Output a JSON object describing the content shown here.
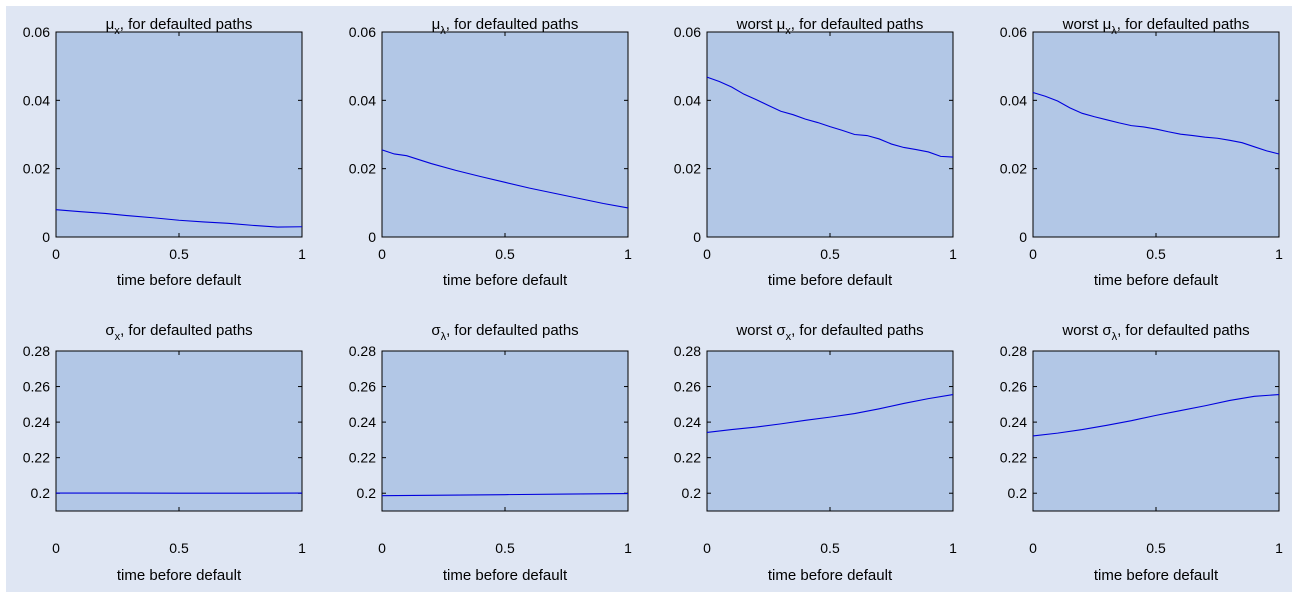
{
  "chart_data": [
    {
      "type": "line",
      "title": {
        "prefix": "",
        "symbol": "μ",
        "subscript": "x",
        "suffix": ", for defaulted paths"
      },
      "xlabel": "time before default",
      "xlim": [
        0,
        1
      ],
      "ylim": [
        0,
        0.06
      ],
      "xticks": [
        "0",
        "0.5",
        "1"
      ],
      "xtick_values": [
        0,
        0.5,
        1
      ],
      "yticks": [
        "0",
        "0.02",
        "0.04",
        "0.06"
      ],
      "ytick_values": [
        0,
        0.02,
        0.04,
        0.06
      ],
      "x": [
        0,
        0.1,
        0.2,
        0.3,
        0.4,
        0.5,
        0.6,
        0.7,
        0.8,
        0.9,
        1
      ],
      "series": [
        {
          "values": [
            0.008,
            0.0074,
            0.0069,
            0.0062,
            0.0056,
            0.0049,
            0.0044,
            0.004,
            0.0034,
            0.0029,
            0.003
          ]
        }
      ]
    },
    {
      "type": "line",
      "title": {
        "prefix": "",
        "symbol": "μ",
        "subscript": "λ",
        "suffix": ", for defaulted paths"
      },
      "xlabel": "time before default",
      "xlim": [
        0,
        1
      ],
      "ylim": [
        0,
        0.06
      ],
      "xticks": [
        "0",
        "0.5",
        "1"
      ],
      "xtick_values": [
        0,
        0.5,
        1
      ],
      "yticks": [
        "0",
        "0.02",
        "0.04",
        "0.06"
      ],
      "ytick_values": [
        0,
        0.02,
        0.04,
        0.06
      ],
      "x": [
        0,
        0.05,
        0.1,
        0.2,
        0.3,
        0.4,
        0.5,
        0.6,
        0.7,
        0.8,
        0.9,
        1
      ],
      "series": [
        {
          "values": [
            0.0255,
            0.0243,
            0.0238,
            0.0215,
            0.0195,
            0.0177,
            0.016,
            0.0143,
            0.0128,
            0.0113,
            0.0098,
            0.0085
          ]
        }
      ]
    },
    {
      "type": "line",
      "title": {
        "prefix": "worst ",
        "symbol": "μ",
        "subscript": "x",
        "suffix": ", for defaulted paths"
      },
      "xlabel": "time before default",
      "xlim": [
        0,
        1
      ],
      "ylim": [
        0,
        0.06
      ],
      "xticks": [
        "0",
        "0.5",
        "1"
      ],
      "xtick_values": [
        0,
        0.5,
        1
      ],
      "yticks": [
        "0",
        "0.02",
        "0.04",
        "0.06"
      ],
      "ytick_values": [
        0,
        0.02,
        0.04,
        0.06
      ],
      "x": [
        0,
        0.05,
        0.1,
        0.15,
        0.2,
        0.25,
        0.3,
        0.35,
        0.4,
        0.45,
        0.5,
        0.55,
        0.6,
        0.65,
        0.7,
        0.75,
        0.8,
        0.85,
        0.9,
        0.95,
        1
      ],
      "series": [
        {
          "values": [
            0.0468,
            0.0455,
            0.0439,
            0.0418,
            0.0402,
            0.0385,
            0.0368,
            0.0358,
            0.0345,
            0.0335,
            0.0323,
            0.0312,
            0.03,
            0.0297,
            0.0287,
            0.0272,
            0.0262,
            0.0256,
            0.0249,
            0.0236,
            0.0234
          ]
        }
      ]
    },
    {
      "type": "line",
      "title": {
        "prefix": "worst ",
        "symbol": "μ",
        "subscript": "λ",
        "suffix": ", for defaulted paths"
      },
      "xlabel": "time before default",
      "xlim": [
        0,
        1
      ],
      "ylim": [
        0,
        0.06
      ],
      "xticks": [
        "0",
        "0.5",
        "1"
      ],
      "xtick_values": [
        0,
        0.5,
        1
      ],
      "yticks": [
        "0",
        "0.02",
        "0.04",
        "0.06"
      ],
      "ytick_values": [
        0,
        0.02,
        0.04,
        0.06
      ],
      "x": [
        0,
        0.05,
        0.1,
        0.15,
        0.2,
        0.25,
        0.3,
        0.35,
        0.4,
        0.45,
        0.5,
        0.55,
        0.6,
        0.65,
        0.7,
        0.75,
        0.8,
        0.85,
        0.9,
        0.95,
        1
      ],
      "series": [
        {
          "values": [
            0.0423,
            0.0412,
            0.0398,
            0.0378,
            0.0362,
            0.0352,
            0.0343,
            0.0334,
            0.0326,
            0.0322,
            0.0316,
            0.0308,
            0.0301,
            0.0297,
            0.0292,
            0.0289,
            0.0283,
            0.0276,
            0.0264,
            0.0252,
            0.0243
          ]
        }
      ]
    },
    {
      "type": "line",
      "title": {
        "prefix": "",
        "symbol": "σ",
        "subscript": "x",
        "suffix": ", for defaulted paths"
      },
      "xlabel": "time before default",
      "xlim": [
        0,
        1
      ],
      "ylim": [
        0.19,
        0.28
      ],
      "xticks": [
        "0",
        "0.5",
        "1"
      ],
      "xtick_values": [
        0,
        0.5,
        1
      ],
      "yticks": [
        "0.2",
        "0.22",
        "0.24",
        "0.26",
        "0.28"
      ],
      "ytick_values": [
        0.2,
        0.22,
        0.24,
        0.26,
        0.28
      ],
      "x": [
        0,
        0.25,
        0.5,
        0.75,
        1
      ],
      "series": [
        {
          "values": [
            0.2001,
            0.2001,
            0.2,
            0.2,
            0.2001
          ]
        }
      ]
    },
    {
      "type": "line",
      "title": {
        "prefix": "",
        "symbol": "σ",
        "subscript": "λ",
        "suffix": ", for defaulted paths"
      },
      "xlabel": "time before default",
      "xlim": [
        0,
        1
      ],
      "ylim": [
        0.19,
        0.28
      ],
      "xticks": [
        "0",
        "0.5",
        "1"
      ],
      "xtick_values": [
        0,
        0.5,
        1
      ],
      "yticks": [
        "0.2",
        "0.22",
        "0.24",
        "0.26",
        "0.28"
      ],
      "ytick_values": [
        0.2,
        0.22,
        0.24,
        0.26,
        0.28
      ],
      "x": [
        0,
        0.25,
        0.5,
        0.75,
        1
      ],
      "series": [
        {
          "values": [
            0.1986,
            0.1989,
            0.1992,
            0.1995,
            0.1998
          ]
        }
      ]
    },
    {
      "type": "line",
      "title": {
        "prefix": "worst ",
        "symbol": "σ",
        "subscript": "x",
        "suffix": ", for defaulted paths"
      },
      "xlabel": "time before default",
      "xlim": [
        0,
        1
      ],
      "ylim": [
        0.19,
        0.28
      ],
      "xticks": [
        "0",
        "0.5",
        "1"
      ],
      "xtick_values": [
        0,
        0.5,
        1
      ],
      "yticks": [
        "0.2",
        "0.22",
        "0.24",
        "0.26",
        "0.28"
      ],
      "ytick_values": [
        0.2,
        0.22,
        0.24,
        0.26,
        0.28
      ],
      "x": [
        0,
        0.1,
        0.2,
        0.3,
        0.4,
        0.5,
        0.6,
        0.7,
        0.8,
        0.9,
        1
      ],
      "series": [
        {
          "values": [
            0.2342,
            0.2358,
            0.2372,
            0.239,
            0.241,
            0.2428,
            0.2448,
            0.2475,
            0.2505,
            0.2532,
            0.2555
          ]
        }
      ]
    },
    {
      "type": "line",
      "title": {
        "prefix": "worst ",
        "symbol": "σ",
        "subscript": "λ",
        "suffix": ", for defaulted paths"
      },
      "xlabel": "time before default",
      "xlim": [
        0,
        1
      ],
      "ylim": [
        0.19,
        0.28
      ],
      "xticks": [
        "0",
        "0.5",
        "1"
      ],
      "xtick_values": [
        0,
        0.5,
        1
      ],
      "yticks": [
        "0.2",
        "0.22",
        "0.24",
        "0.26",
        "0.28"
      ],
      "ytick_values": [
        0.2,
        0.22,
        0.24,
        0.26,
        0.28
      ],
      "x": [
        0,
        0.1,
        0.2,
        0.3,
        0.4,
        0.5,
        0.6,
        0.7,
        0.8,
        0.9,
        1
      ],
      "series": [
        {
          "values": [
            0.2322,
            0.2338,
            0.2358,
            0.2382,
            0.2408,
            0.2438,
            0.2465,
            0.2492,
            0.2522,
            0.2545,
            0.2555
          ]
        }
      ]
    }
  ],
  "colors": {
    "figure_background": "#dfe6f3",
    "axes_background": "#b2c7e6",
    "line": "#0000dd",
    "axes": "#000000"
  }
}
